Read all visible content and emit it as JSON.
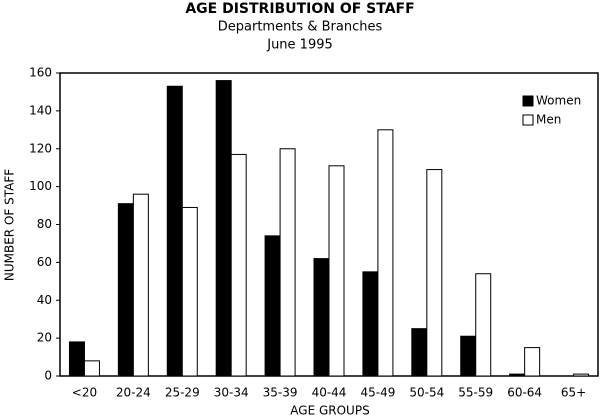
{
  "chart_data": {
    "type": "bar",
    "title": "AGE DISTRIBUTION OF STAFF",
    "subtitle": "Departments & Branches",
    "date": "June 1995",
    "x_label": "AGE GROUPS",
    "y_label": "NUMBER OF STAFF",
    "categories": [
      "<20",
      "20-24",
      "25-29",
      "30-34",
      "35-39",
      "40-44",
      "45-49",
      "50-54",
      "55-59",
      "60-64",
      "65+"
    ],
    "series": [
      {
        "name": "Women",
        "color": "#000000",
        "values": [
          18,
          91,
          153,
          156,
          74,
          62,
          55,
          25,
          21,
          1,
          0
        ]
      },
      {
        "name": "Men",
        "color": "#ffffff",
        "values": [
          8,
          96,
          89,
          117,
          120,
          111,
          130,
          109,
          54,
          15,
          1
        ]
      }
    ],
    "ylim": [
      0,
      160
    ],
    "yticks": [
      0,
      20,
      40,
      60,
      80,
      100,
      120,
      140,
      160
    ],
    "grid": false,
    "legend": "top-right"
  }
}
